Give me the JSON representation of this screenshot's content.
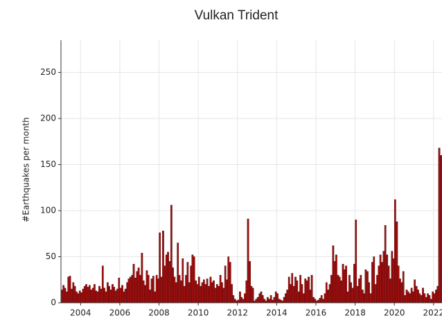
{
  "chart_data": {
    "type": "bar",
    "title": "Vulkan Trident",
    "ylabel": "#Earthquakes per month",
    "color": "#a50f0f",
    "edgecolor": "#3a0000",
    "grid": true,
    "xlim": [
      2003,
      2022.43
    ],
    "ylim": [
      0,
      285
    ],
    "xticks": [
      2004,
      2006,
      2008,
      2010,
      2012,
      2014,
      2016,
      2018,
      2020,
      2022
    ],
    "yticks": [
      0,
      50,
      100,
      150,
      200,
      250
    ],
    "x": [
      2003.04,
      2003.13,
      2003.21,
      2003.29,
      2003.38,
      2003.46,
      2003.54,
      2003.63,
      2003.71,
      2003.79,
      2003.88,
      2003.96,
      2004.04,
      2004.13,
      2004.21,
      2004.29,
      2004.38,
      2004.46,
      2004.54,
      2004.63,
      2004.71,
      2004.79,
      2004.88,
      2004.96,
      2005.04,
      2005.13,
      2005.21,
      2005.29,
      2005.38,
      2005.46,
      2005.54,
      2005.63,
      2005.71,
      2005.79,
      2005.88,
      2005.96,
      2006.04,
      2006.13,
      2006.21,
      2006.29,
      2006.38,
      2006.46,
      2006.54,
      2006.63,
      2006.71,
      2006.79,
      2006.88,
      2006.96,
      2007.04,
      2007.13,
      2007.21,
      2007.29,
      2007.38,
      2007.46,
      2007.54,
      2007.63,
      2007.71,
      2007.79,
      2007.88,
      2007.96,
      2008.04,
      2008.13,
      2008.21,
      2008.29,
      2008.38,
      2008.46,
      2008.54,
      2008.63,
      2008.71,
      2008.79,
      2008.88,
      2008.96,
      2009.04,
      2009.13,
      2009.21,
      2009.29,
      2009.38,
      2009.46,
      2009.54,
      2009.63,
      2009.71,
      2009.79,
      2009.88,
      2009.96,
      2010.04,
      2010.13,
      2010.21,
      2010.29,
      2010.38,
      2010.46,
      2010.54,
      2010.63,
      2010.71,
      2010.79,
      2010.88,
      2010.96,
      2011.04,
      2011.13,
      2011.21,
      2011.29,
      2011.38,
      2011.46,
      2011.54,
      2011.63,
      2011.71,
      2011.79,
      2011.88,
      2011.96,
      2012.04,
      2012.13,
      2012.21,
      2012.29,
      2012.38,
      2012.46,
      2012.54,
      2012.63,
      2012.71,
      2012.79,
      2012.88,
      2012.96,
      2013.04,
      2013.13,
      2013.21,
      2013.29,
      2013.38,
      2013.46,
      2013.54,
      2013.63,
      2013.71,
      2013.79,
      2013.88,
      2013.96,
      2014.04,
      2014.13,
      2014.21,
      2014.29,
      2014.38,
      2014.46,
      2014.54,
      2014.63,
      2014.71,
      2014.79,
      2014.88,
      2014.96,
      2015.04,
      2015.13,
      2015.21,
      2015.29,
      2015.38,
      2015.46,
      2015.54,
      2015.63,
      2015.71,
      2015.79,
      2015.88,
      2015.96,
      2016.04,
      2016.13,
      2016.21,
      2016.29,
      2016.38,
      2016.46,
      2016.54,
      2016.63,
      2016.71,
      2016.79,
      2016.88,
      2016.96,
      2017.04,
      2017.13,
      2017.21,
      2017.29,
      2017.38,
      2017.46,
      2017.54,
      2017.63,
      2017.71,
      2017.79,
      2017.88,
      2017.96,
      2018.04,
      2018.13,
      2018.21,
      2018.29,
      2018.38,
      2018.46,
      2018.54,
      2018.63,
      2018.71,
      2018.79,
      2018.88,
      2018.96,
      2019.04,
      2019.13,
      2019.21,
      2019.29,
      2019.38,
      2019.46,
      2019.54,
      2019.63,
      2019.71,
      2019.79,
      2019.88,
      2019.96,
      2020.04,
      2020.13,
      2020.21,
      2020.29,
      2020.38,
      2020.46,
      2020.54,
      2020.63,
      2020.71,
      2020.79,
      2020.88,
      2020.96,
      2021.04,
      2021.13,
      2021.21,
      2021.29,
      2021.38,
      2021.46,
      2021.54,
      2021.63,
      2021.71,
      2021.79,
      2021.88,
      2021.96,
      2022.04,
      2022.13,
      2022.21,
      2022.29,
      2022.38
    ],
    "values": [
      14,
      19,
      16,
      12,
      28,
      29,
      15,
      22,
      18,
      12,
      10,
      13,
      11,
      15,
      18,
      20,
      17,
      19,
      14,
      16,
      20,
      13,
      12,
      18,
      15,
      40,
      16,
      12,
      22,
      18,
      14,
      20,
      17,
      13,
      15,
      27,
      16,
      19,
      12,
      15,
      22,
      26,
      28,
      30,
      42,
      27,
      34,
      38,
      30,
      54,
      24,
      19,
      35,
      30,
      14,
      26,
      29,
      12,
      30,
      26,
      76,
      28,
      78,
      40,
      52,
      55,
      45,
      106,
      38,
      28,
      22,
      65,
      30,
      24,
      48,
      18,
      30,
      44,
      22,
      40,
      52,
      50,
      24,
      20,
      28,
      18,
      22,
      25,
      20,
      26,
      18,
      28,
      22,
      24,
      16,
      20,
      18,
      30,
      22,
      16,
      40,
      25,
      50,
      44,
      20,
      8,
      4,
      2,
      3,
      12,
      6,
      4,
      10,
      24,
      91,
      45,
      18,
      16,
      2,
      4,
      6,
      10,
      12,
      8,
      4,
      2,
      6,
      4,
      8,
      3,
      6,
      12,
      10,
      4,
      3,
      2,
      6,
      10,
      14,
      28,
      20,
      32,
      18,
      28,
      24,
      12,
      30,
      20,
      10,
      26,
      24,
      28,
      14,
      30,
      6,
      4,
      2,
      3,
      5,
      8,
      4,
      10,
      22,
      14,
      20,
      30,
      62,
      45,
      52,
      30,
      28,
      24,
      42,
      36,
      40,
      12,
      30,
      22,
      16,
      42,
      90,
      18,
      26,
      30,
      14,
      10,
      36,
      34,
      22,
      10,
      44,
      50,
      20,
      30,
      40,
      52,
      44,
      56,
      84,
      52,
      40,
      26,
      56,
      48,
      112,
      88,
      40,
      26,
      22,
      34,
      8,
      14,
      12,
      10,
      16,
      12,
      25,
      18,
      14,
      10,
      8,
      16,
      10,
      6,
      10,
      8,
      4,
      12,
      10,
      14,
      18,
      168,
      160
    ]
  }
}
